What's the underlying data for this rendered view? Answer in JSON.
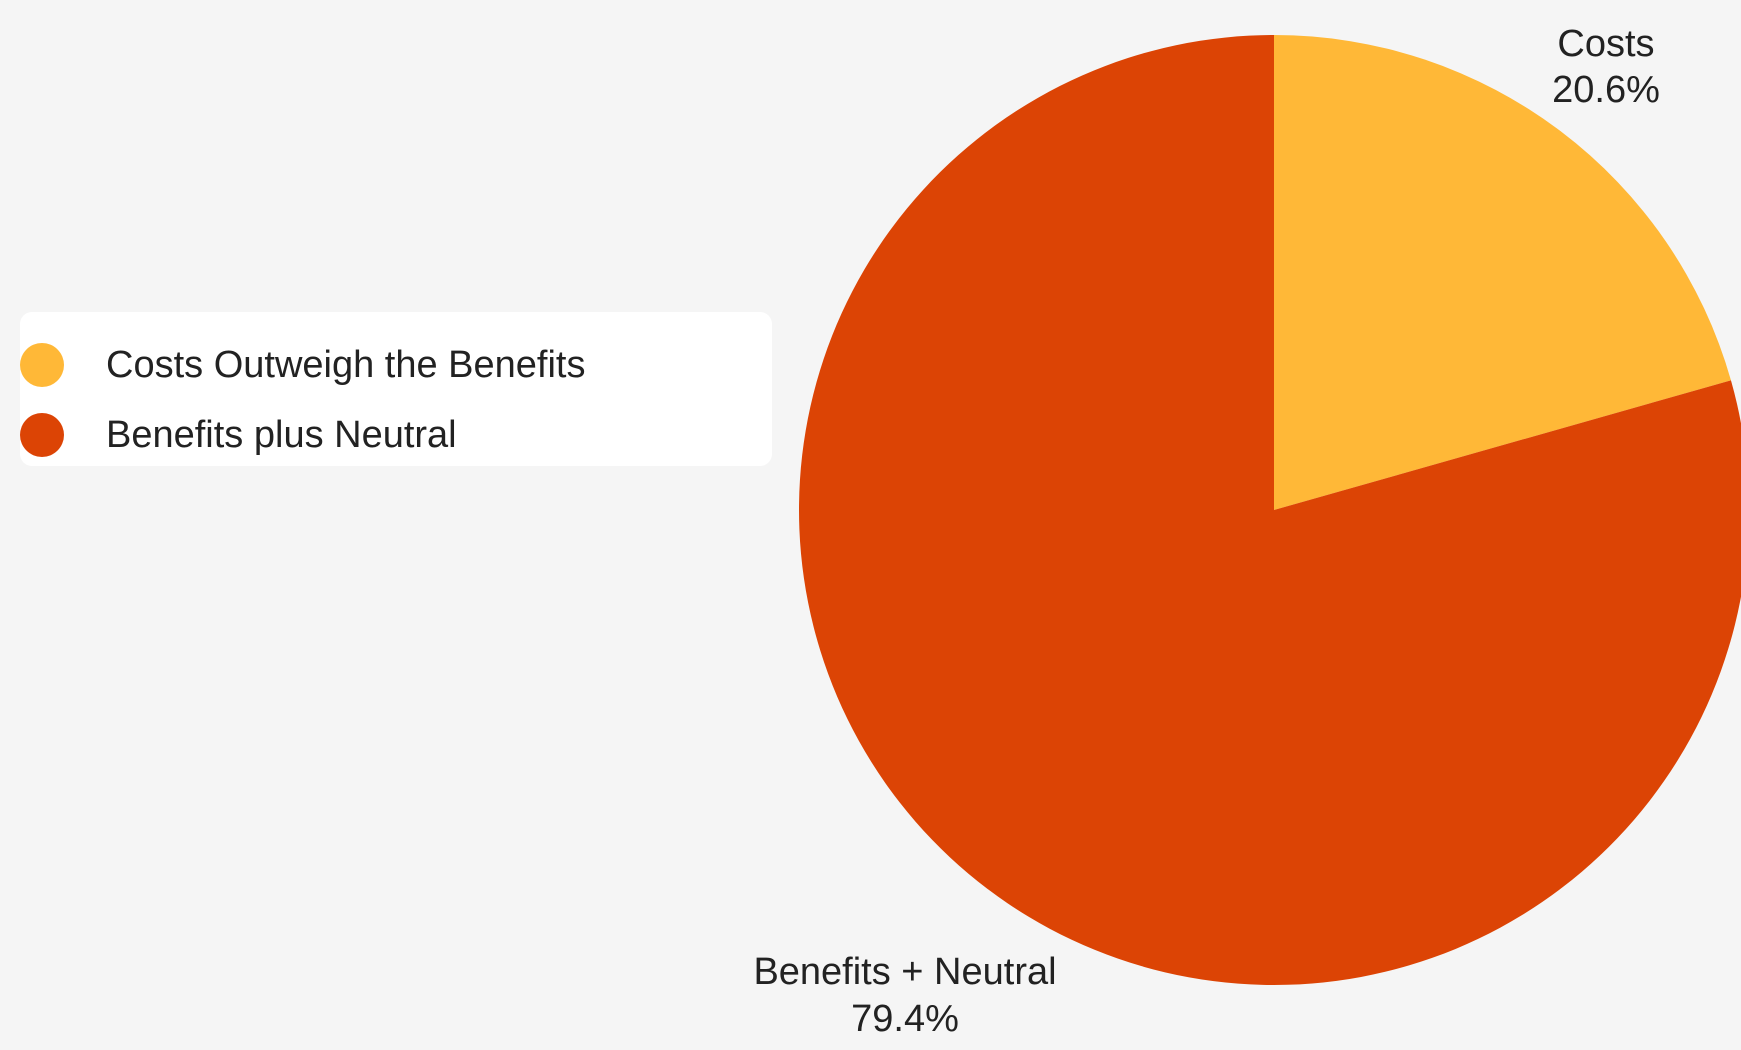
{
  "chart_data": {
    "type": "pie",
    "slices": [
      {
        "name": "Costs Outweigh the Benefits",
        "label": "Costs",
        "value_label": "20.6%",
        "value": 20.6,
        "color": "#ffb837"
      },
      {
        "name": "Benefits plus Neutral",
        "label": "Benefits + Neutral",
        "value_label": "79.4%",
        "value": 79.4,
        "color": "#dc4405"
      }
    ],
    "legend": {
      "placement": "left",
      "items": [
        {
          "label": "Costs Outweigh the Benefits",
          "color": "#ffb837"
        },
        {
          "label": "Benefits plus Neutral",
          "color": "#dc4405"
        }
      ]
    }
  }
}
